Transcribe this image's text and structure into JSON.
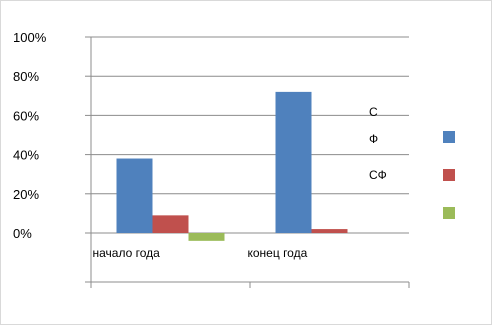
{
  "chart_data": {
    "type": "bar",
    "categories": [
      "начало года",
      "конец года"
    ],
    "series": [
      {
        "name": "С",
        "color": "#4f81bd",
        "values": [
          0.38,
          0.72
        ]
      },
      {
        "name": "Ф",
        "color": "#c0504d",
        "values": [
          0.09,
          0.02
        ]
      },
      {
        "name": "СФ",
        "color": "#9bbb59",
        "values": [
          -0.04,
          null
        ]
      }
    ],
    "y_ticks": [
      "100%",
      "80%",
      "60%",
      "40%",
      "20%",
      "0%"
    ],
    "ylim": [
      -0.25,
      1.0
    ],
    "y_format": "percent",
    "grid": true,
    "legend_position": "right"
  }
}
